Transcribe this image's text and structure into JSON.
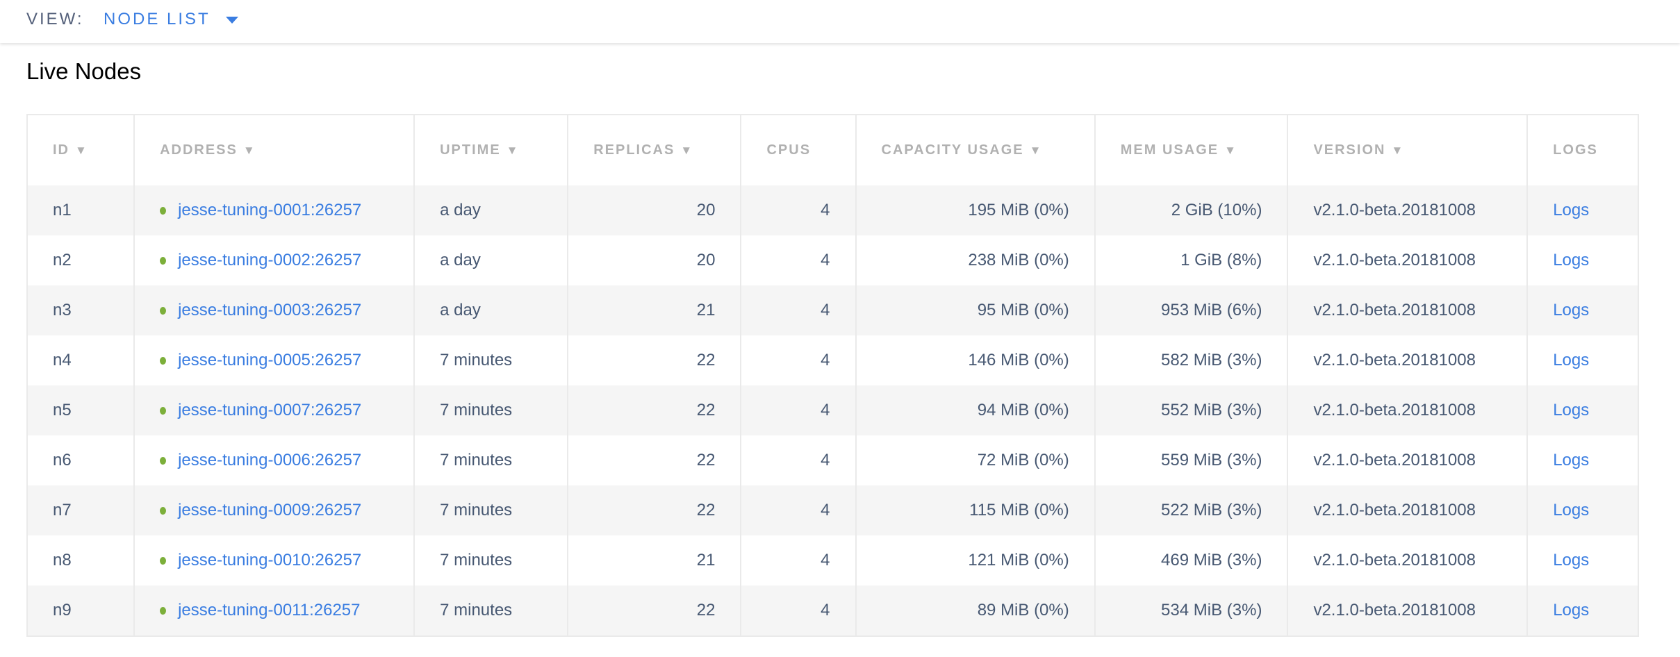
{
  "header": {
    "view_label": "VIEW:",
    "view_value": "NODE LIST"
  },
  "page_title": "Live Nodes",
  "colors": {
    "link": "#3a7de1",
    "live_dot": "#7caf3a",
    "text": "#475872"
  },
  "columns": [
    {
      "label": "ID",
      "sort": "▼"
    },
    {
      "label": "ADDRESS",
      "sort": "▼"
    },
    {
      "label": "UPTIME",
      "sort": "▼"
    },
    {
      "label": "REPLICAS",
      "sort": "▼"
    },
    {
      "label": "CPUS",
      "sort": ""
    },
    {
      "label": "CAPACITY USAGE",
      "sort": "▼"
    },
    {
      "label": "MEM USAGE",
      "sort": "▼"
    },
    {
      "label": "VERSION",
      "sort": "▼"
    },
    {
      "label": "LOGS",
      "sort": ""
    }
  ],
  "rows": [
    {
      "id": "n1",
      "address": "jesse-tuning-0001:26257",
      "uptime": "a day",
      "replicas": "20",
      "cpus": "4",
      "capacity": "195 MiB (0%)",
      "mem": "2 GiB (10%)",
      "version": "v2.1.0-beta.20181008",
      "logs": "Logs"
    },
    {
      "id": "n2",
      "address": "jesse-tuning-0002:26257",
      "uptime": "a day",
      "replicas": "20",
      "cpus": "4",
      "capacity": "238 MiB (0%)",
      "mem": "1 GiB (8%)",
      "version": "v2.1.0-beta.20181008",
      "logs": "Logs"
    },
    {
      "id": "n3",
      "address": "jesse-tuning-0003:26257",
      "uptime": "a day",
      "replicas": "21",
      "cpus": "4",
      "capacity": "95 MiB (0%)",
      "mem": "953 MiB (6%)",
      "version": "v2.1.0-beta.20181008",
      "logs": "Logs"
    },
    {
      "id": "n4",
      "address": "jesse-tuning-0005:26257",
      "uptime": "7 minutes",
      "replicas": "22",
      "cpus": "4",
      "capacity": "146 MiB (0%)",
      "mem": "582 MiB (3%)",
      "version": "v2.1.0-beta.20181008",
      "logs": "Logs"
    },
    {
      "id": "n5",
      "address": "jesse-tuning-0007:26257",
      "uptime": "7 minutes",
      "replicas": "22",
      "cpus": "4",
      "capacity": "94 MiB (0%)",
      "mem": "552 MiB (3%)",
      "version": "v2.1.0-beta.20181008",
      "logs": "Logs"
    },
    {
      "id": "n6",
      "address": "jesse-tuning-0006:26257",
      "uptime": "7 minutes",
      "replicas": "22",
      "cpus": "4",
      "capacity": "72 MiB (0%)",
      "mem": "559 MiB (3%)",
      "version": "v2.1.0-beta.20181008",
      "logs": "Logs"
    },
    {
      "id": "n7",
      "address": "jesse-tuning-0009:26257",
      "uptime": "7 minutes",
      "replicas": "22",
      "cpus": "4",
      "capacity": "115 MiB (0%)",
      "mem": "522 MiB (3%)",
      "version": "v2.1.0-beta.20181008",
      "logs": "Logs"
    },
    {
      "id": "n8",
      "address": "jesse-tuning-0010:26257",
      "uptime": "7 minutes",
      "replicas": "21",
      "cpus": "4",
      "capacity": "121 MiB (0%)",
      "mem": "469 MiB (3%)",
      "version": "v2.1.0-beta.20181008",
      "logs": "Logs"
    },
    {
      "id": "n9",
      "address": "jesse-tuning-0011:26257",
      "uptime": "7 minutes",
      "replicas": "22",
      "cpus": "4",
      "capacity": "89 MiB (0%)",
      "mem": "534 MiB (3%)",
      "version": "v2.1.0-beta.20181008",
      "logs": "Logs"
    }
  ]
}
